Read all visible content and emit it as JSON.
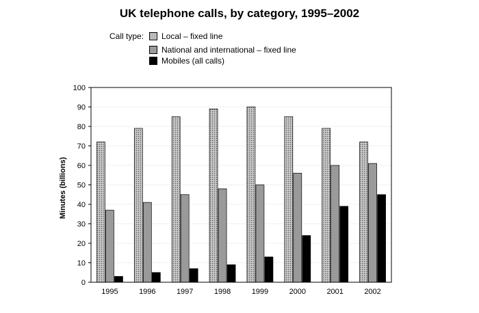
{
  "chart_data": {
    "type": "bar",
    "title": "UK telephone calls, by category, 1995–2002",
    "legend_title": "Call type:",
    "legend_position": "top",
    "xlabel": "",
    "ylabel": "Minutes (billions)",
    "ylim": [
      0,
      100
    ],
    "yticks": [
      0,
      10,
      20,
      30,
      40,
      50,
      60,
      70,
      80,
      90,
      100
    ],
    "grid": true,
    "categories": [
      "1995",
      "1996",
      "1997",
      "1998",
      "1999",
      "2000",
      "2001",
      "2002"
    ],
    "series": [
      {
        "name": "Local – fixed line",
        "values": [
          72,
          79,
          85,
          89,
          90,
          85,
          79,
          72
        ],
        "color": "#b4b4b4",
        "pattern": "dotted"
      },
      {
        "name": "National and international – fixed line",
        "values": [
          37,
          41,
          45,
          48,
          50,
          56,
          60,
          61
        ],
        "color": "#9a9a9a",
        "pattern": "solid"
      },
      {
        "name": "Mobiles (all calls)",
        "values": [
          3,
          5,
          7,
          9,
          13,
          24,
          39,
          45
        ],
        "color": "#000000",
        "pattern": "solid"
      }
    ]
  }
}
